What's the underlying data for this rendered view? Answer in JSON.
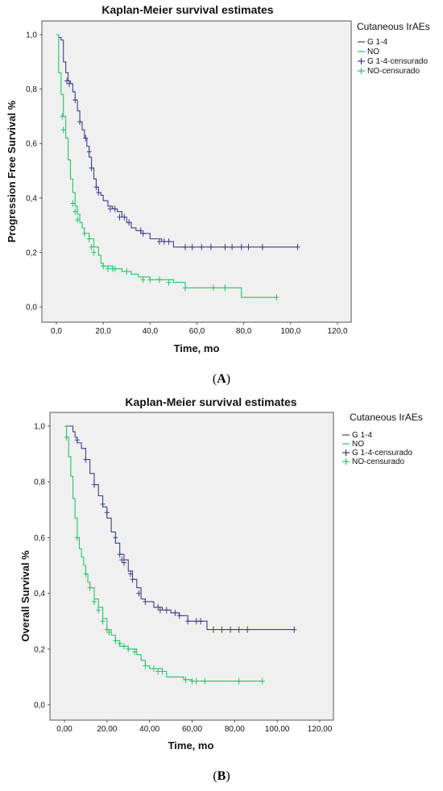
{
  "figure": {
    "panels": [
      {
        "id": "A",
        "caption_open": "(",
        "caption_letter": "A",
        "caption_close": ")",
        "title": "Kaplan-Meier survival estimates",
        "ylabel": "Progression Free Survival %",
        "xlabel": "Time, mo",
        "xtick_labels": [
          "0,0",
          "20,0",
          "40,0",
          "60,0",
          "80,0",
          "100,0",
          "120,0"
        ],
        "ytick_labels": [
          "0,0",
          "0,2",
          "0,4",
          "0,6",
          "0,8",
          "1,0"
        ],
        "legend_title": "Cutaneous IrAEs",
        "legend": [
          "G 1-4",
          "NO",
          "G 1-4-censurado",
          "NO-censurado"
        ]
      },
      {
        "id": "B",
        "caption_open": "(",
        "caption_letter": "B",
        "caption_close": ")",
        "title": "Kaplan-Meier survival estimates",
        "ylabel": "Overall Survival %",
        "xlabel": "Time, mo",
        "xtick_labels": [
          "0,00",
          "20,00",
          "40,00",
          "60,00",
          "80,00",
          "100,00",
          "120,00"
        ],
        "ytick_labels": [
          "0,0",
          "0,2",
          "0,4",
          "0,6",
          "0,8",
          "1,0"
        ],
        "legend_title": "Cutaneous IrAEs",
        "legend": [
          "G 1-4",
          "NO",
          "G 1-4-censurado",
          "NO-censurado"
        ]
      }
    ]
  },
  "colors": {
    "g14": "#3b3f8a",
    "no": "#22c46a",
    "plot_bg": "#f0f0f0",
    "axis": "#555555"
  },
  "chart_data": [
    {
      "type": "line",
      "title": "Kaplan-Meier survival estimates",
      "xlabel": "Time, mo",
      "ylabel": "Progression Free Survival %",
      "xlim": [
        0,
        120
      ],
      "ylim": [
        0,
        1
      ],
      "x_ticks": [
        0,
        20,
        40,
        60,
        80,
        100,
        120
      ],
      "y_ticks": [
        0,
        0.2,
        0.4,
        0.6,
        0.8,
        1.0
      ],
      "legend_title": "Cutaneous IrAEs",
      "legend_position": "top-right",
      "series": [
        {
          "name": "G 1-4",
          "color": "#3b3f8a",
          "points": [
            [
              0,
              1.0
            ],
            [
              1,
              0.99
            ],
            [
              2,
              0.98
            ],
            [
              3,
              0.9
            ],
            [
              4,
              0.86
            ],
            [
              5,
              0.83
            ],
            [
              6,
              0.82
            ],
            [
              7,
              0.79
            ],
            [
              8,
              0.76
            ],
            [
              9,
              0.72
            ],
            [
              10,
              0.68
            ],
            [
              11,
              0.65
            ],
            [
              12,
              0.62
            ],
            [
              13,
              0.59
            ],
            [
              14,
              0.55
            ],
            [
              15,
              0.51
            ],
            [
              16,
              0.47
            ],
            [
              17,
              0.44
            ],
            [
              18,
              0.42
            ],
            [
              19,
              0.41
            ],
            [
              20,
              0.39
            ],
            [
              22,
              0.37
            ],
            [
              24,
              0.36
            ],
            [
              26,
              0.35
            ],
            [
              28,
              0.33
            ],
            [
              30,
              0.31
            ],
            [
              32,
              0.29
            ],
            [
              34,
              0.28
            ],
            [
              36,
              0.27
            ],
            [
              40,
              0.25
            ],
            [
              45,
              0.24
            ],
            [
              50,
              0.22
            ],
            [
              103,
              0.22
            ]
          ]
        },
        {
          "name": "NO",
          "color": "#22c46a",
          "points": [
            [
              0,
              1.0
            ],
            [
              1,
              0.86
            ],
            [
              2,
              0.78
            ],
            [
              3,
              0.7
            ],
            [
              4,
              0.62
            ],
            [
              5,
              0.54
            ],
            [
              6,
              0.47
            ],
            [
              7,
              0.42
            ],
            [
              8,
              0.37
            ],
            [
              9,
              0.34
            ],
            [
              10,
              0.31
            ],
            [
              11,
              0.29
            ],
            [
              12,
              0.27
            ],
            [
              14,
              0.25
            ],
            [
              16,
              0.22
            ],
            [
              18,
              0.19
            ],
            [
              19,
              0.16
            ],
            [
              20,
              0.15
            ],
            [
              24,
              0.14
            ],
            [
              28,
              0.13
            ],
            [
              32,
              0.12
            ],
            [
              35,
              0.11
            ],
            [
              40,
              0.1
            ],
            [
              50,
              0.09
            ],
            [
              55,
              0.07
            ],
            [
              79,
              0.07
            ],
            [
              79,
              0.035
            ],
            [
              94,
              0.035
            ]
          ]
        },
        {
          "name": "G 1-4-censurado",
          "marker": "+",
          "color": "#3b3f8a",
          "points": [
            [
              4.5,
              0.83
            ],
            [
              5.5,
              0.82
            ],
            [
              8,
              0.76
            ],
            [
              10,
              0.68
            ],
            [
              12.5,
              0.62
            ],
            [
              14,
              0.57
            ],
            [
              15,
              0.51
            ],
            [
              17,
              0.44
            ],
            [
              18,
              0.42
            ],
            [
              23,
              0.36
            ],
            [
              25,
              0.36
            ],
            [
              27,
              0.33
            ],
            [
              29,
              0.33
            ],
            [
              31,
              0.31
            ],
            [
              36,
              0.28
            ],
            [
              37,
              0.27
            ],
            [
              44,
              0.24
            ],
            [
              46,
              0.24
            ],
            [
              48,
              0.24
            ],
            [
              55,
              0.22
            ],
            [
              58,
              0.22
            ],
            [
              62,
              0.22
            ],
            [
              66,
              0.22
            ],
            [
              72,
              0.22
            ],
            [
              75,
              0.22
            ],
            [
              79,
              0.22
            ],
            [
              82,
              0.22
            ],
            [
              88,
              0.22
            ],
            [
              103,
              0.22
            ]
          ]
        },
        {
          "name": "NO-censurado",
          "marker": "+",
          "color": "#22c46a",
          "points": [
            [
              2.5,
              0.7
            ],
            [
              3,
              0.65
            ],
            [
              7,
              0.38
            ],
            [
              8,
              0.35
            ],
            [
              9,
              0.32
            ],
            [
              12,
              0.27
            ],
            [
              14,
              0.25
            ],
            [
              15,
              0.22
            ],
            [
              16,
              0.2
            ],
            [
              20,
              0.15
            ],
            [
              22,
              0.14
            ],
            [
              24,
              0.14
            ],
            [
              25,
              0.14
            ],
            [
              30,
              0.13
            ],
            [
              37,
              0.1
            ],
            [
              40,
              0.1
            ],
            [
              44,
              0.1
            ],
            [
              48,
              0.09
            ],
            [
              55,
              0.07
            ],
            [
              67,
              0.07
            ],
            [
              72,
              0.07
            ],
            [
              94,
              0.035
            ]
          ]
        }
      ]
    },
    {
      "type": "line",
      "title": "Kaplan-Meier survival estimates",
      "xlabel": "Time, mo",
      "ylabel": "Overall Survival %",
      "xlim": [
        0,
        120
      ],
      "ylim": [
        0,
        1
      ],
      "x_ticks": [
        0,
        20,
        40,
        60,
        80,
        100,
        120
      ],
      "y_ticks": [
        0,
        0.2,
        0.4,
        0.6,
        0.8,
        1.0
      ],
      "legend_title": "Cutaneous IrAEs",
      "legend_position": "top-right",
      "series": [
        {
          "name": "G 1-4",
          "color": "#3b3f8a",
          "points": [
            [
              0,
              1.0
            ],
            [
              3,
              1.0
            ],
            [
              4,
              0.98
            ],
            [
              5,
              0.96
            ],
            [
              6,
              0.94
            ],
            [
              8,
              0.92
            ],
            [
              10,
              0.88
            ],
            [
              12,
              0.83
            ],
            [
              14,
              0.79
            ],
            [
              16,
              0.75
            ],
            [
              18,
              0.71
            ],
            [
              20,
              0.67
            ],
            [
              22,
              0.62
            ],
            [
              24,
              0.58
            ],
            [
              26,
              0.54
            ],
            [
              28,
              0.52
            ],
            [
              30,
              0.48
            ],
            [
              32,
              0.45
            ],
            [
              34,
              0.42
            ],
            [
              36,
              0.38
            ],
            [
              38,
              0.37
            ],
            [
              42,
              0.35
            ],
            [
              46,
              0.34
            ],
            [
              50,
              0.33
            ],
            [
              54,
              0.32
            ],
            [
              58,
              0.3
            ],
            [
              67,
              0.3
            ],
            [
              67,
              0.27
            ],
            [
              108,
              0.27
            ]
          ]
        },
        {
          "name": "NO",
          "color": "#22c46a",
          "points": [
            [
              0,
              1.0
            ],
            [
              1,
              0.96
            ],
            [
              2,
              0.89
            ],
            [
              3,
              0.82
            ],
            [
              4,
              0.74
            ],
            [
              5,
              0.67
            ],
            [
              6,
              0.6
            ],
            [
              7,
              0.56
            ],
            [
              8,
              0.53
            ],
            [
              9,
              0.5
            ],
            [
              10,
              0.47
            ],
            [
              11,
              0.44
            ],
            [
              12,
              0.42
            ],
            [
              14,
              0.38
            ],
            [
              16,
              0.35
            ],
            [
              18,
              0.31
            ],
            [
              20,
              0.27
            ],
            [
              22,
              0.25
            ],
            [
              24,
              0.23
            ],
            [
              26,
              0.21
            ],
            [
              30,
              0.2
            ],
            [
              34,
              0.18
            ],
            [
              36,
              0.16
            ],
            [
              38,
              0.14
            ],
            [
              40,
              0.13
            ],
            [
              46,
              0.12
            ],
            [
              48,
              0.1
            ],
            [
              56,
              0.09
            ],
            [
              60,
              0.085
            ],
            [
              93,
              0.085
            ]
          ]
        },
        {
          "name": "G 1-4-censurado",
          "marker": "+",
          "color": "#3b3f8a",
          "points": [
            [
              6,
              0.95
            ],
            [
              10,
              0.88
            ],
            [
              14,
              0.79
            ],
            [
              18,
              0.72
            ],
            [
              20,
              0.69
            ],
            [
              24,
              0.6
            ],
            [
              26,
              0.54
            ],
            [
              27,
              0.52
            ],
            [
              28,
              0.51
            ],
            [
              31,
              0.47
            ],
            [
              32,
              0.45
            ],
            [
              35,
              0.4
            ],
            [
              38,
              0.37
            ],
            [
              44,
              0.35
            ],
            [
              45,
              0.34
            ],
            [
              48,
              0.34
            ],
            [
              52,
              0.33
            ],
            [
              54,
              0.32
            ],
            [
              58,
              0.3
            ],
            [
              62,
              0.3
            ],
            [
              64,
              0.3
            ],
            [
              70,
              0.27
            ],
            [
              74,
              0.27
            ],
            [
              78,
              0.27
            ],
            [
              82,
              0.27
            ],
            [
              86,
              0.27
            ],
            [
              108,
              0.27
            ]
          ]
        },
        {
          "name": "NO-censurado",
          "marker": "+",
          "color": "#22c46a",
          "points": [
            [
              1,
              0.96
            ],
            [
              6,
              0.6
            ],
            [
              10,
              0.47
            ],
            [
              12,
              0.42
            ],
            [
              14,
              0.37
            ],
            [
              16,
              0.34
            ],
            [
              18,
              0.3
            ],
            [
              20,
              0.27
            ],
            [
              21,
              0.26
            ],
            [
              24,
              0.23
            ],
            [
              26,
              0.22
            ],
            [
              28,
              0.21
            ],
            [
              30,
              0.2
            ],
            [
              33,
              0.19
            ],
            [
              38,
              0.14
            ],
            [
              42,
              0.13
            ],
            [
              44,
              0.12
            ],
            [
              46,
              0.12
            ],
            [
              57,
              0.09
            ],
            [
              60,
              0.085
            ],
            [
              62,
              0.085
            ],
            [
              66,
              0.085
            ],
            [
              82,
              0.085
            ],
            [
              93,
              0.085
            ]
          ]
        }
      ]
    }
  ]
}
